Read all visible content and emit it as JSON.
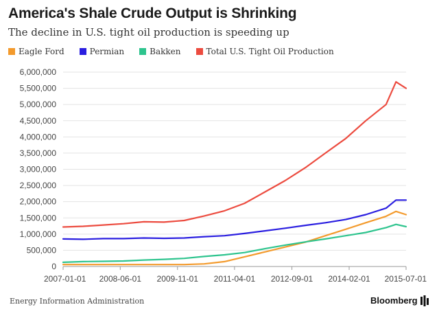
{
  "header": {
    "title": "America's Shale Crude Output is Shrinking",
    "subtitle": "The decline in U.S. tight oil production is speeding up"
  },
  "footer": {
    "source": "Energy Information Administration",
    "brand": "Bloomberg"
  },
  "chart_data": {
    "type": "line",
    "title": "America's Shale Crude Output is Shrinking",
    "subtitle": "The decline in U.S. tight oil production is speeding up",
    "xlabel": "",
    "ylabel": "",
    "x_ticks": [
      "2007-01-01",
      "2008-06-01",
      "2009-11-01",
      "2011-04-01",
      "2012-09-01",
      "2014-02-01",
      "2015-07-01"
    ],
    "y_ticks": [
      "0",
      "500,000",
      "1,000,000",
      "1,500,000",
      "2,000,000",
      "2,500,000",
      "3,000,000",
      "3,500,000",
      "4,000,000",
      "4,500,000",
      "5,000,000",
      "5,500,000",
      "6,000,000"
    ],
    "xlim": [
      "2007-01-01",
      "2015-07-01"
    ],
    "ylim": [
      0,
      6000000
    ],
    "grid": "horizontal",
    "legend_position": "top",
    "x": [
      "2007-01-01",
      "2007-07-01",
      "2008-01-01",
      "2008-07-01",
      "2009-01-01",
      "2009-07-01",
      "2010-01-01",
      "2010-07-01",
      "2011-01-01",
      "2011-07-01",
      "2012-01-01",
      "2012-07-01",
      "2013-01-01",
      "2013-07-01",
      "2014-01-01",
      "2014-07-01",
      "2015-01-01",
      "2015-04-01",
      "2015-07-01"
    ],
    "series": [
      {
        "name": "Eagle Ford",
        "color": "#f39a2c",
        "values": [
          60000,
          60000,
          60000,
          60000,
          60000,
          60000,
          60000,
          80000,
          150000,
          300000,
          450000,
          600000,
          750000,
          950000,
          1150000,
          1350000,
          1550000,
          1700000,
          1600000
        ]
      },
      {
        "name": "Permian",
        "color": "#2a1ee0",
        "values": [
          850000,
          840000,
          860000,
          860000,
          880000,
          870000,
          880000,
          920000,
          950000,
          1020000,
          1100000,
          1180000,
          1270000,
          1350000,
          1450000,
          1600000,
          1800000,
          2050000,
          2050000
        ]
      },
      {
        "name": "Bakken",
        "color": "#2ec48e",
        "values": [
          130000,
          150000,
          160000,
          170000,
          200000,
          220000,
          250000,
          310000,
          360000,
          430000,
          550000,
          660000,
          760000,
          850000,
          950000,
          1050000,
          1200000,
          1300000,
          1230000
        ]
      },
      {
        "name": "Total U.S. Tight Oil Production",
        "color": "#ec4b3f",
        "values": [
          1220000,
          1240000,
          1280000,
          1320000,
          1380000,
          1370000,
          1420000,
          1560000,
          1720000,
          1950000,
          2300000,
          2650000,
          3050000,
          3500000,
          3950000,
          4500000,
          5000000,
          5700000,
          5500000
        ]
      }
    ]
  }
}
